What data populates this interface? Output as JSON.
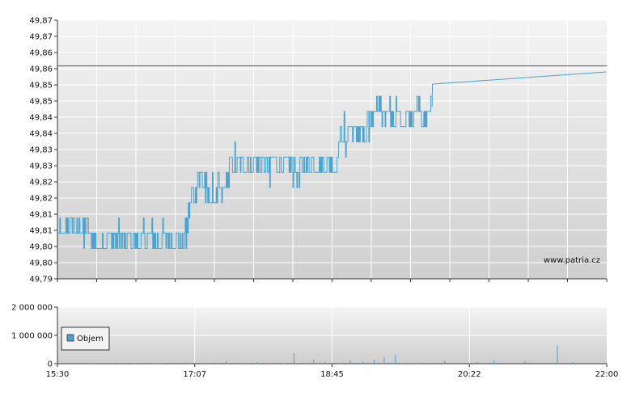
{
  "watermark": "www.patria.cz",
  "colors": {
    "series": "#4aa3cf",
    "reference_line": "#cc2222",
    "grid": "#ffffff",
    "axis": "#333333",
    "plot_top": "#f4f4f4",
    "plot_bottom": "#cfcfcf"
  },
  "chart_data": [
    {
      "type": "line",
      "name": "price",
      "title": "",
      "xlabel": "",
      "ylabel": "",
      "ylim": [
        49.79,
        49.875
      ],
      "y_ticks": [
        "49,79",
        "49,80",
        "49,80",
        "49,81",
        "49,81",
        "49,82",
        "49,82",
        "49,83",
        "49,83",
        "49,84",
        "49,84",
        "49,85",
        "49,85",
        "49,86",
        "49,86",
        "49,87",
        "49,87"
      ],
      "reference_line": 49.86,
      "x_tick_labels": [
        "15:30",
        "17:07",
        "18:45",
        "20:22",
        "22:00"
      ],
      "x_range_minutes": [
        930,
        1320
      ],
      "grid": true,
      "keypoints": [
        [
          930,
          49.805
        ],
        [
          935,
          49.805
        ],
        [
          940,
          49.8055
        ],
        [
          945,
          49.805
        ],
        [
          950,
          49.8055
        ],
        [
          955,
          49.8045
        ],
        [
          960,
          49.805
        ],
        [
          965,
          49.8045
        ],
        [
          970,
          49.8035
        ],
        [
          975,
          49.804
        ],
        [
          980,
          49.8035
        ],
        [
          985,
          49.804
        ],
        [
          990,
          49.8035
        ],
        [
          995,
          49.803
        ],
        [
          1000,
          49.804
        ],
        [
          1005,
          49.8035
        ],
        [
          1010,
          49.803
        ],
        [
          1015,
          49.804
        ],
        [
          1020,
          49.805
        ],
        [
          1022,
          49.808
        ],
        [
          1025,
          49.815
        ],
        [
          1028,
          49.819
        ],
        [
          1032,
          49.8235
        ],
        [
          1036,
          49.818
        ],
        [
          1040,
          49.8175
        ],
        [
          1044,
          49.8175
        ],
        [
          1048,
          49.818
        ],
        [
          1050,
          49.821
        ],
        [
          1052,
          49.826
        ],
        [
          1056,
          49.83
        ],
        [
          1060,
          49.8295
        ],
        [
          1065,
          49.83
        ],
        [
          1070,
          49.828
        ],
        [
          1075,
          49.826
        ],
        [
          1080,
          49.825
        ],
        [
          1085,
          49.8255
        ],
        [
          1090,
          49.8255
        ],
        [
          1095,
          49.826
        ],
        [
          1100,
          49.8255
        ],
        [
          1105,
          49.8265
        ],
        [
          1110,
          49.827
        ],
        [
          1115,
          49.8275
        ],
        [
          1120,
          49.8275
        ],
        [
          1125,
          49.827
        ],
        [
          1128,
          49.8285
        ],
        [
          1130,
          49.836
        ],
        [
          1133,
          49.838
        ],
        [
          1137,
          49.8355
        ],
        [
          1140,
          49.8365
        ],
        [
          1145,
          49.8355
        ],
        [
          1148,
          49.838
        ],
        [
          1152,
          49.8425
        ],
        [
          1156,
          49.8465
        ],
        [
          1160,
          49.8455
        ],
        [
          1165,
          49.8445
        ],
        [
          1170,
          49.8445
        ],
        [
          1175,
          49.8445
        ],
        [
          1180,
          49.8445
        ],
        [
          1185,
          49.8455
        ],
        [
          1190,
          49.8445
        ],
        [
          1194,
          49.845
        ],
        [
          1195,
          49.854
        ],
        [
          1196,
          49.8465
        ]
      ],
      "end_point_label_note": ""
    },
    {
      "type": "bar",
      "name": "volume",
      "title": "",
      "ylim": [
        0,
        2000000
      ],
      "y_ticks": [
        "0",
        "1 000 000",
        "2 000 000"
      ],
      "legend": [
        "Objem"
      ],
      "legend_position": "left",
      "grid": true,
      "x_range_minutes": [
        930,
        1320
      ],
      "x_tick_labels": [
        "15:30",
        "17:07",
        "18:45",
        "20:22",
        "22:00"
      ],
      "spikes": [
        [
          1022,
          40000
        ],
        [
          1050,
          90000
        ],
        [
          1072,
          60000
        ],
        [
          1098,
          380000
        ],
        [
          1112,
          150000
        ],
        [
          1120,
          70000
        ],
        [
          1138,
          120000
        ],
        [
          1147,
          80000
        ],
        [
          1155,
          150000
        ],
        [
          1162,
          220000
        ],
        [
          1170,
          330000
        ],
        [
          1205,
          100000
        ],
        [
          1228,
          60000
        ],
        [
          1240,
          130000
        ],
        [
          1262,
          100000
        ],
        [
          1285,
          650000
        ],
        [
          1296,
          60000
        ],
        [
          1310,
          30000
        ]
      ]
    }
  ]
}
